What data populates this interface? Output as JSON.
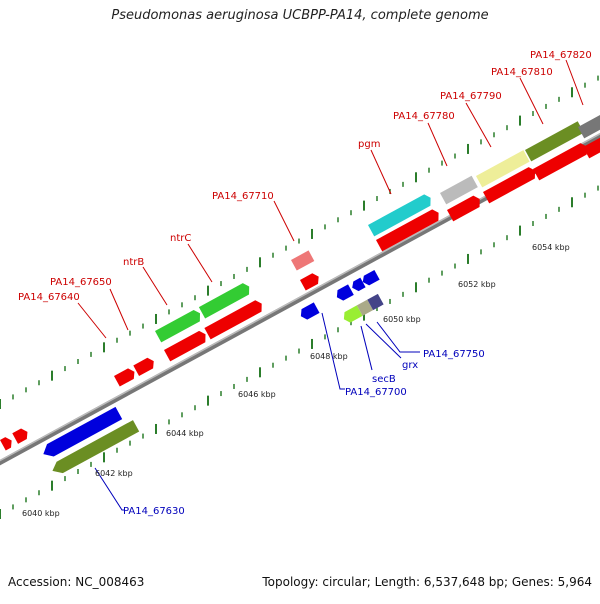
{
  "title": "Pseudomonas aeruginosa UCBPP-PA14, complete genome",
  "footer": {
    "accession": "Accession: NC_008463",
    "summary": "Topology: circular; Length: 6,537,648 bp; Genes: 5,964"
  },
  "colors": {
    "forward_label": "#cc0000",
    "reverse_label": "#0000bb",
    "tick": "#2b7d2b",
    "backbone": "#888888"
  },
  "scale_labels": [
    "6040 kbp",
    "6042 kbp",
    "6044 kbp",
    "6046 kbp",
    "6048 kbp",
    "6050 kbp",
    "6052 kbp",
    "6054 kbp"
  ],
  "gene_labels": [
    {
      "text": "PA14_67820",
      "strand": "forward"
    },
    {
      "text": "PA14_67810",
      "strand": "forward"
    },
    {
      "text": "PA14_67790",
      "strand": "forward"
    },
    {
      "text": "PA14_67780",
      "strand": "forward"
    },
    {
      "text": "pgm",
      "strand": "forward"
    },
    {
      "text": "PA14_67710",
      "strand": "forward"
    },
    {
      "text": "ntrC",
      "strand": "forward"
    },
    {
      "text": "ntrB",
      "strand": "forward"
    },
    {
      "text": "PA14_67650",
      "strand": "forward"
    },
    {
      "text": "PA14_67640",
      "strand": "forward"
    },
    {
      "text": "PA14_67750",
      "strand": "reverse"
    },
    {
      "text": "grx",
      "strand": "reverse"
    },
    {
      "text": "secB",
      "strand": "reverse"
    },
    {
      "text": "PA14_67700",
      "strand": "reverse"
    },
    {
      "text": "PA14_67630",
      "strand": "reverse"
    }
  ]
}
